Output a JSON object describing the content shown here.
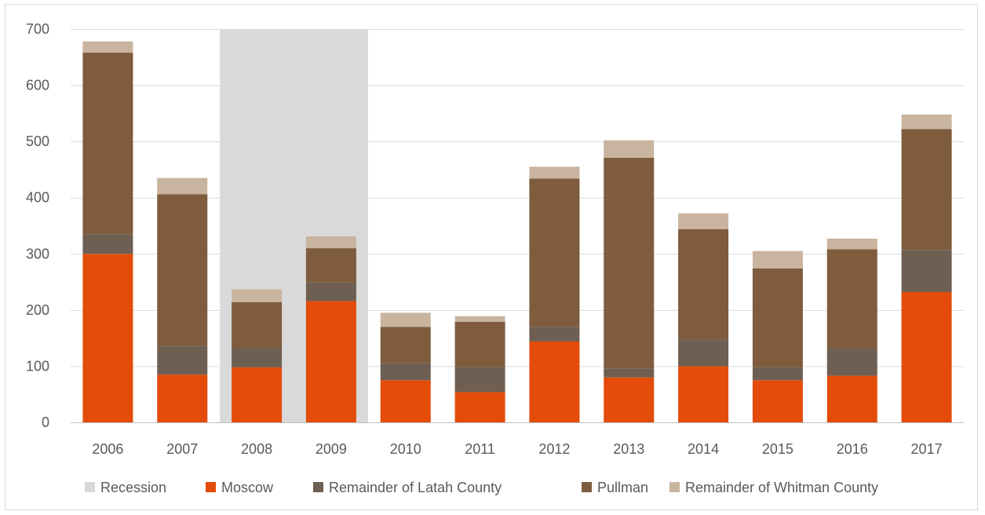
{
  "chart_data": {
    "type": "bar",
    "stacked": true,
    "categories": [
      "2006",
      "2007",
      "2008",
      "2009",
      "2010",
      "2011",
      "2012",
      "2013",
      "2014",
      "2015",
      "2016",
      "2017"
    ],
    "series": [
      {
        "name": "Moscow",
        "color": "#e34c0a",
        "values": [
          300,
          85,
          98,
          216,
          75,
          54,
          144,
          80,
          100,
          75,
          83,
          232
        ]
      },
      {
        "name": "Remainder of Latah County",
        "color": "#6e5f52",
        "values": [
          35,
          51,
          34,
          33,
          30,
          44,
          26,
          16,
          48,
          23,
          49,
          75
        ]
      },
      {
        "name": "Pullman",
        "color": "#7e5c3d",
        "values": [
          323,
          270,
          82,
          61,
          65,
          81,
          264,
          375,
          196,
          176,
          176,
          215
        ]
      },
      {
        "name": "Remainder of Whitman County",
        "color": "#c9b49f",
        "values": [
          20,
          29,
          23,
          21,
          25,
          10,
          21,
          31,
          28,
          31,
          19,
          26
        ]
      }
    ],
    "recession": {
      "name": "Recession",
      "color": "#d9d9d9",
      "categories": [
        "2008",
        "2009"
      ],
      "value": 700
    },
    "ylim": [
      0,
      700
    ],
    "yticks": [
      0,
      100,
      200,
      300,
      400,
      500,
      600,
      700
    ],
    "grid": true,
    "legend": "bottom",
    "legend_order": [
      "Recession",
      "Moscow",
      "Remainder of Latah County",
      "Pullman",
      "Remainder of Whitman County"
    ]
  }
}
